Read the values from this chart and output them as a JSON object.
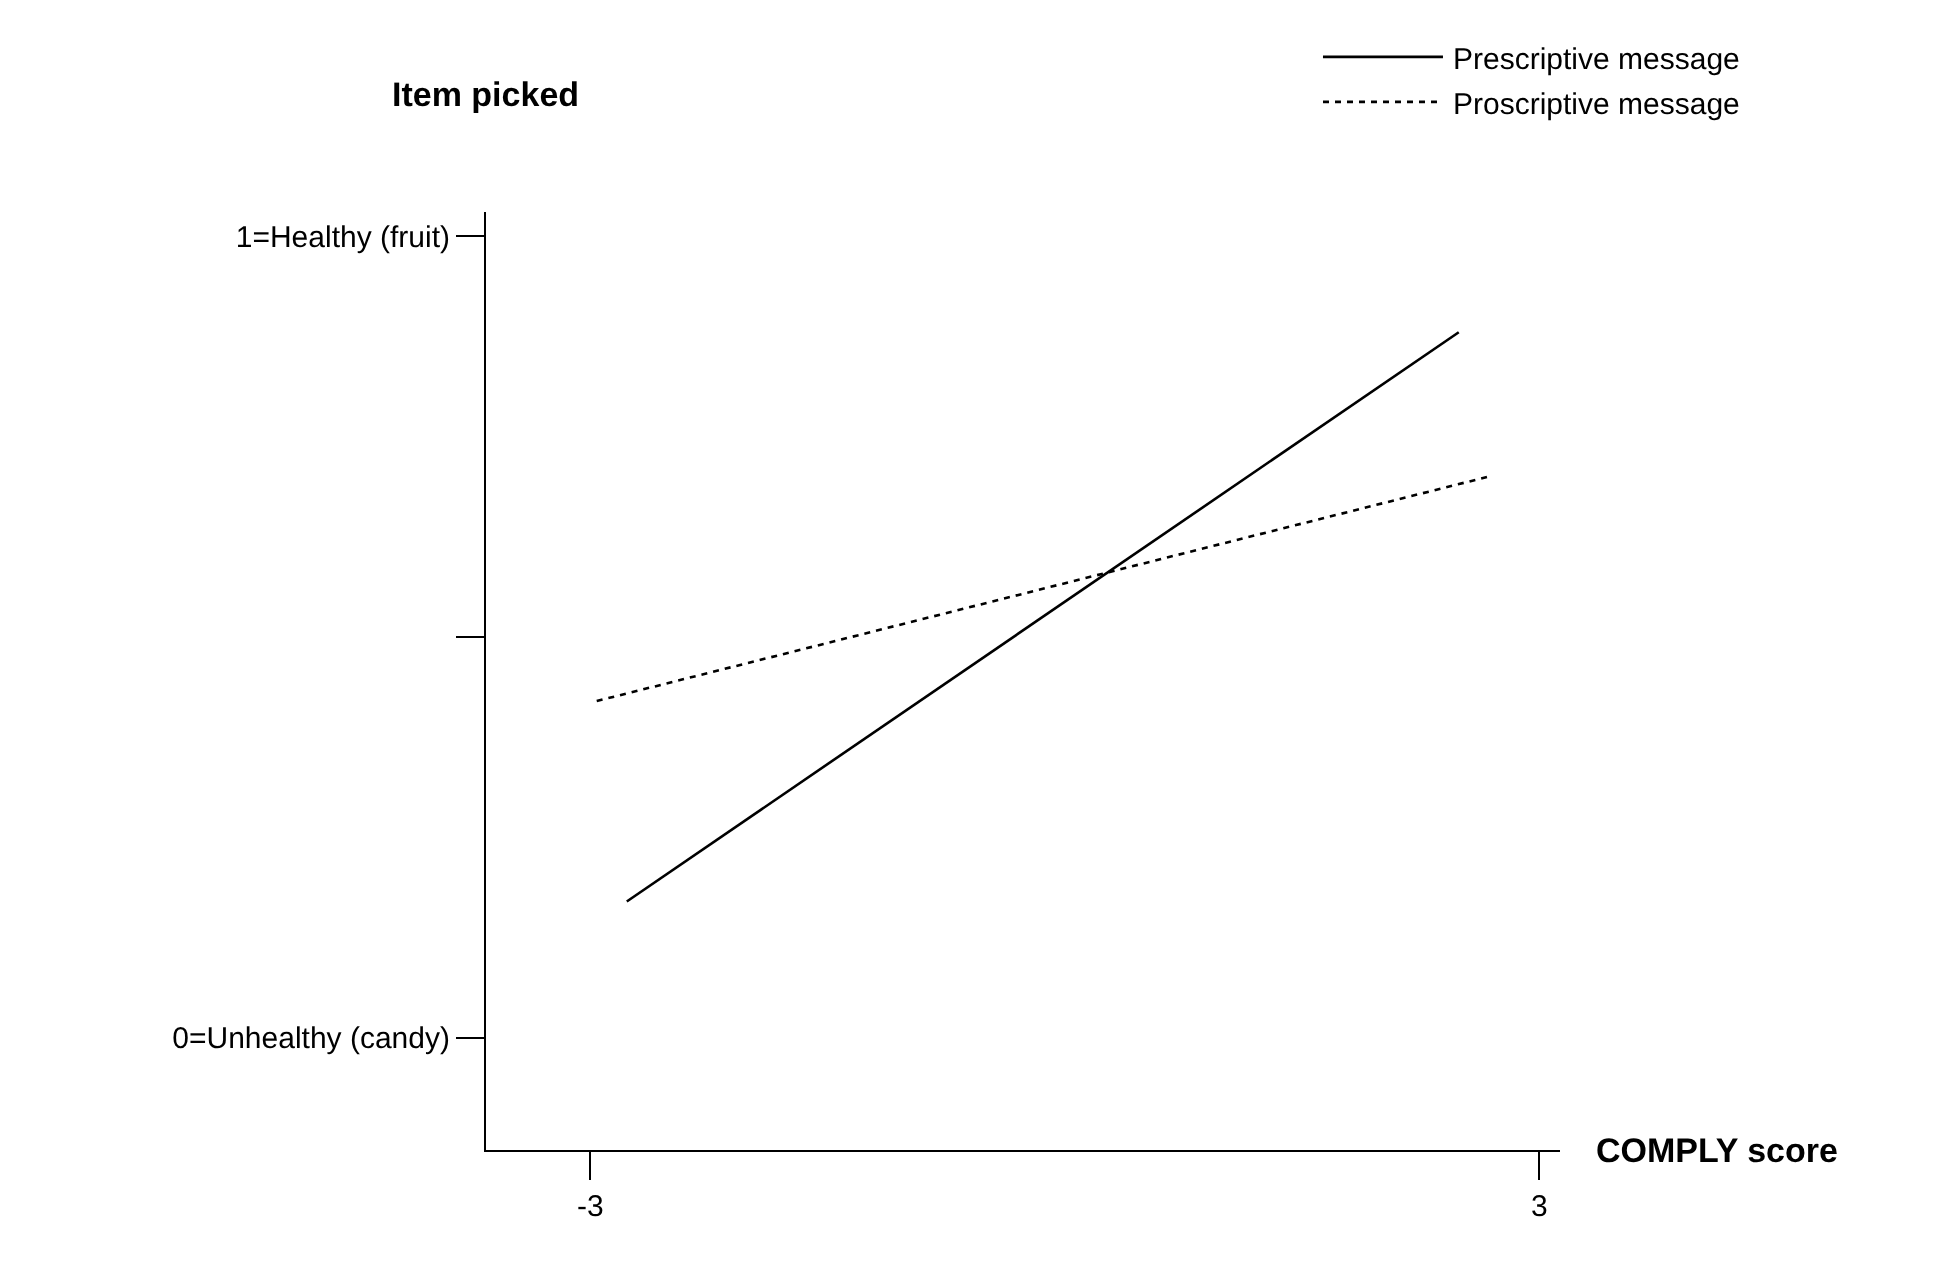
{
  "chart_data": {
    "type": "line",
    "xlabel": "COMPLY score",
    "ylabel": "Item picked",
    "series": [
      {
        "name": "Prescriptive message",
        "color": "#000000",
        "line_style": "solid",
        "x": [
          -2.77,
          2.49
        ],
        "values": [
          0.17,
          0.88
        ]
      },
      {
        "name": "Proscriptive message",
        "color": "#000000",
        "line_style": "dotted",
        "x": [
          -2.96,
          2.68
        ],
        "values": [
          0.42,
          0.7
        ]
      }
    ],
    "xlim": [
      -3.66,
      3.13
    ],
    "xticks": [
      -3,
      3
    ],
    "ylim": [
      -0.14,
      1.03
    ],
    "yticks": [
      {
        "value": 0,
        "label": "0=Unhealthy (candy)"
      },
      {
        "value": 0.5,
        "label": null
      },
      {
        "value": 1,
        "label": "1=Healthy (fruit)"
      }
    ],
    "legend": "top right",
    "marker": "none"
  }
}
